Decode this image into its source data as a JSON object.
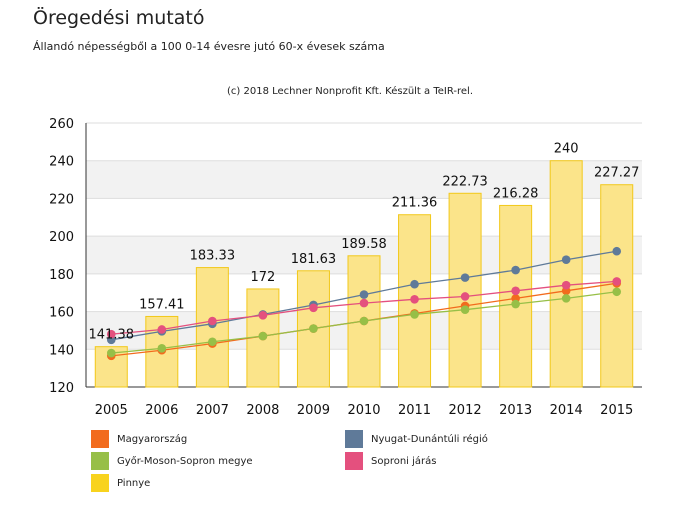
{
  "header": {
    "title": "Öregedési mutató",
    "subtitle": "Állandó népességből a 100 0-14 évesre jutó 60-x évesek száma",
    "credit": "(c) 2018 Lechner Nonprofit Kft. Készült a TeIR-rel."
  },
  "colors": {
    "plot_bg_band": "#f2f2f2",
    "grid": "#dddddd",
    "bar_fill": "#fbe48a",
    "bar_stroke": "#f2c81a"
  },
  "chart_data": {
    "type": "bar",
    "title": "Öregedési mutató",
    "subtitle": "Állandó népességből a 100 0-14 évesre jutó 60-x évesek száma",
    "categories": [
      "2005",
      "2006",
      "2007",
      "2008",
      "2009",
      "2010",
      "2011",
      "2012",
      "2013",
      "2014",
      "2015"
    ],
    "ylim": [
      120,
      260
    ],
    "yticks": [
      120,
      140,
      160,
      180,
      200,
      220,
      240,
      260
    ],
    "grid": true,
    "legend_position": "bottom",
    "bars": {
      "name": "Pinnye",
      "color": "#f8d31e",
      "values": [
        141.38,
        157.41,
        183.33,
        172,
        181.63,
        189.58,
        211.36,
        222.73,
        216.28,
        240,
        227.27
      ],
      "labels": [
        "141.38",
        "157.41",
        "183.33",
        "172",
        "181.63",
        "189.58",
        "211.36",
        "222.73",
        "216.28",
        "240",
        "227.27"
      ]
    },
    "series": [
      {
        "name": "Magyarország",
        "color": "#f26b1d",
        "values": [
          136.5,
          139.5,
          143.0,
          147.0,
          151.0,
          155.0,
          159.0,
          163.0,
          167.0,
          171.0,
          175.0
        ]
      },
      {
        "name": "Győr-Moson-Sopron megye",
        "color": "#97bf47",
        "values": [
          138.0,
          140.5,
          144.0,
          147.0,
          151.0,
          155.0,
          158.5,
          161.0,
          164.0,
          167.0,
          170.5
        ]
      },
      {
        "name": "Nyugat-Dunántúli régió",
        "color": "#5f7a99",
        "values": [
          145.0,
          149.5,
          153.5,
          158.5,
          163.5,
          169.0,
          174.5,
          178.0,
          182.0,
          187.5,
          192.0
        ]
      },
      {
        "name": "Soproni járás",
        "color": "#e4507e",
        "values": [
          148.0,
          150.5,
          155.0,
          158.0,
          162.0,
          164.5,
          166.5,
          168.0,
          171.0,
          174.0,
          176.0
        ]
      }
    ],
    "legend_order": [
      "Magyarország",
      "Nyugat-Dunántúli régió",
      "Győr-Moson-Sopron megye",
      "Soproni járás",
      "Pinnye"
    ]
  }
}
